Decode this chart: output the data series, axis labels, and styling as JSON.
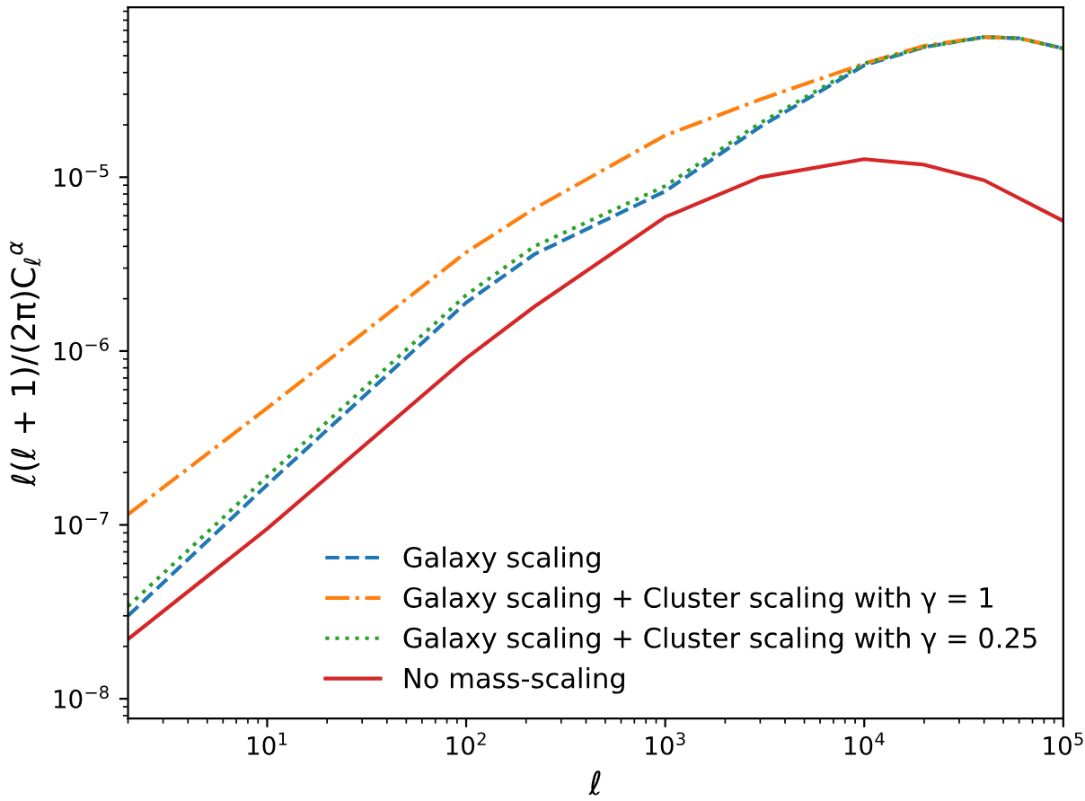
{
  "chart_data": {
    "type": "line",
    "xlabel": "ℓ",
    "ylabel": "ℓ(ℓ + 1)/(2π)C$_{ℓ}$$^{α}$",
    "log": "xy",
    "legend": "lower right",
    "grid": false,
    "xlim": [
      2,
      100000
    ],
    "ylim": [
      7.7e-09,
      9.5e-05
    ],
    "xticks": [
      {
        "value": 10,
        "label": "10$^{1}$"
      },
      {
        "value": 100,
        "label": "10$^{2}$"
      },
      {
        "value": 1000,
        "label": "10$^{3}$"
      },
      {
        "value": 10000,
        "label": "10$^{4}$"
      },
      {
        "value": 100000,
        "label": "10$^{5}$"
      }
    ],
    "yticks": [
      {
        "value": 1e-08,
        "label": "10$^{−8}$"
      },
      {
        "value": 1e-07,
        "label": "10$^{−7}$"
      },
      {
        "value": 1e-06,
        "label": "10$^{−6}$"
      },
      {
        "value": 1e-05,
        "label": "10$^{−5}$"
      }
    ],
    "series": [
      {
        "name": "Galaxy scaling",
        "color": "#1f77b4",
        "line_style": "dashed",
        "x": [
          2,
          10,
          100,
          220,
          1000,
          3000,
          10000,
          20000,
          40000,
          60000,
          100000
        ],
        "values": [
          3e-08,
          1.7e-07,
          1.9e-06,
          3.6e-06,
          8.3e-06,
          1.95e-05,
          4.4e-05,
          5.6e-05,
          6.4e-05,
          6.3e-05,
          5.5e-05
        ]
      },
      {
        "name": "Galaxy scaling + Cluster scaling with γ = 1",
        "color": "#ff7f0e",
        "line_style": "dashdot",
        "x": [
          2,
          10,
          100,
          220,
          1000,
          3000,
          10000,
          20000,
          40000,
          60000,
          100000
        ],
        "values": [
          1.15e-07,
          4.7e-07,
          3.7e-06,
          6.6e-06,
          1.74e-05,
          2.8e-05,
          4.5e-05,
          5.7e-05,
          6.4e-05,
          6.3e-05,
          5.5e-05
        ]
      },
      {
        "name": "Galaxy scaling + Cluster scaling with γ = 0.25",
        "color": "#2ca02c",
        "line_style": "dotted",
        "x": [
          2,
          10,
          100,
          220,
          1000,
          3000,
          10000,
          20000,
          40000,
          60000,
          100000
        ],
        "values": [
          3.4e-08,
          1.9e-07,
          2.1e-06,
          4e-06,
          8.9e-06,
          2.05e-05,
          4.5e-05,
          5.6e-05,
          6.4e-05,
          6.3e-05,
          5.5e-05
        ]
      },
      {
        "name": "No mass-scaling",
        "color": "#d62728",
        "line_style": "solid",
        "x": [
          2,
          10,
          100,
          220,
          1000,
          3000,
          10000,
          20000,
          40000,
          100000
        ],
        "values": [
          2.2e-08,
          9.5e-08,
          9.1e-07,
          1.8e-06,
          5.9e-06,
          1e-05,
          1.27e-05,
          1.18e-05,
          9.6e-06,
          5.6e-06
        ]
      }
    ]
  }
}
